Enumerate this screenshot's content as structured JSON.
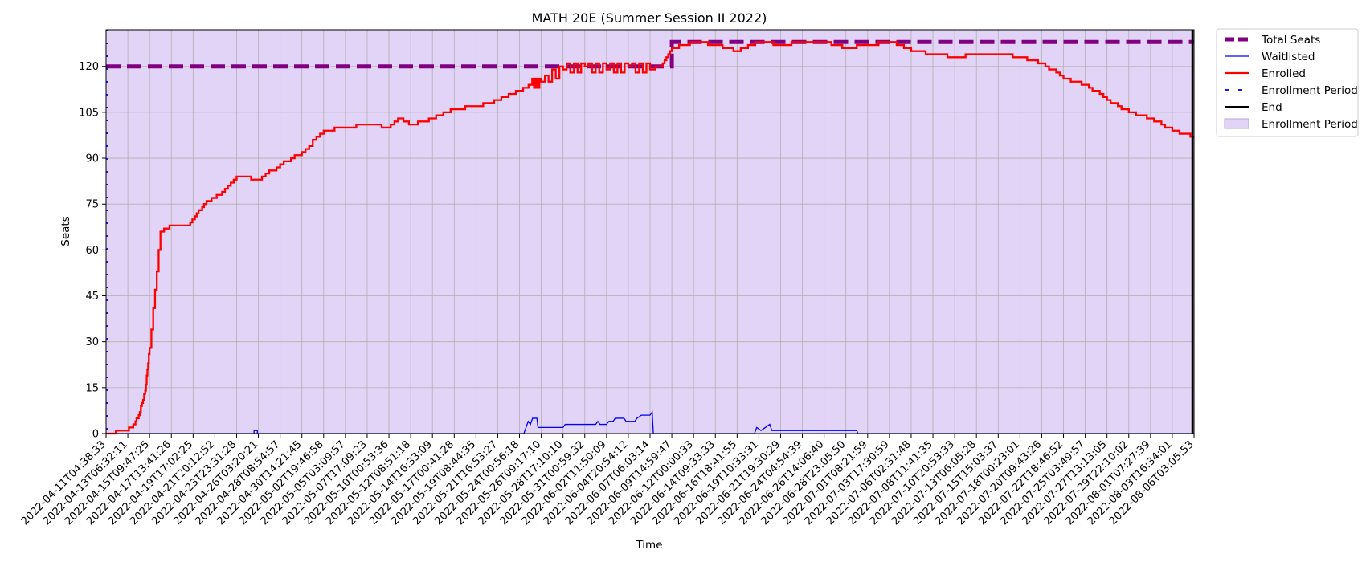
{
  "chart_data": {
    "type": "line",
    "title": "MATH 20E (Summer Session II 2022)",
    "xlabel": "Time",
    "ylabel": "Seats",
    "ylim": [
      0,
      132
    ],
    "yticks": [
      0,
      15,
      30,
      45,
      60,
      75,
      90,
      105,
      120
    ],
    "grid": true,
    "legend_position": "outside-top-right",
    "background_color": "#e2d4f6",
    "x_tick_labels": [
      "2022-04-11T04:38:33",
      "2022-04-13T06:32:11",
      "2022-04-15T09:47:25",
      "2022-04-17T13:41:26",
      "2022-04-19T17:02:25",
      "2022-04-21T20:12:52",
      "2022-04-23T23:31:28",
      "2022-04-26T03:20:21",
      "2022-04-28T08:54:57",
      "2022-04-30T14:21:45",
      "2022-05-02T19:46:58",
      "2022-05-05T03:09:57",
      "2022-05-07T17:09:23",
      "2022-05-10T00:53:36",
      "2022-05-12T08:51:18",
      "2022-05-14T16:33:09",
      "2022-05-17T00:41:28",
      "2022-05-19T08:44:35",
      "2022-05-21T16:53:27",
      "2022-05-24T00:56:18",
      "2022-05-26T09:17:10",
      "2022-05-28T17:10:10",
      "2022-05-31T00:59:32",
      "2022-06-02T11:50:09",
      "2022-06-04T20:54:12",
      "2022-06-07T06:03:14",
      "2022-06-09T14:59:47",
      "2022-06-12T00:00:33",
      "2022-06-14T09:33:33",
      "2022-06-16T18:41:55",
      "2022-06-19T10:33:31",
      "2022-06-21T19:30:29",
      "2022-06-24T04:54:39",
      "2022-06-26T14:06:40",
      "2022-06-28T23:05:50",
      "2022-07-01T08:21:59",
      "2022-07-03T17:30:59",
      "2022-07-06T02:31:48",
      "2022-07-08T11:41:35",
      "2022-07-10T20:53:33",
      "2022-07-13T06:05:28",
      "2022-07-15T15:03:37",
      "2022-07-18T00:23:01",
      "2022-07-20T09:43:26",
      "2022-07-22T18:46:52",
      "2022-07-25T03:49:57",
      "2022-07-27T13:13:05",
      "2022-07-29T22:10:02",
      "2022-08-01T07:27:39",
      "2022-08-03T16:34:01",
      "2022-08-06T03:05:53"
    ],
    "x": [
      0,
      0.9,
      1.2,
      1.5,
      1.8,
      2.0,
      2.5,
      3.0,
      3.8,
      4.0,
      4.5,
      5.2,
      6.0,
      7.0,
      8.0,
      9.0,
      10.0,
      11.0,
      12.0,
      13.0,
      13.5,
      14.0,
      15.0,
      16.0,
      17.0,
      18.0,
      19.0,
      19.5,
      20.0,
      21.0,
      22.0,
      23.0,
      24.0,
      25.0,
      25.5,
      26.0,
      27.0,
      28.0,
      29.0,
      30.0,
      31.0,
      32.0,
      33.0,
      34.0,
      35.0,
      36.0,
      37.0,
      38.0,
      39.0,
      40.0,
      41.0,
      42.0,
      43.0,
      44.0,
      45.0,
      46.0,
      47.0,
      48.0,
      49.0,
      50.0
    ],
    "series": [
      {
        "name": "Total Seats",
        "color": "#800080",
        "style": "dashed-thick",
        "values": [
          120,
          120,
          120,
          120,
          120,
          120,
          120,
          120,
          120,
          120,
          120,
          120,
          120,
          120,
          120,
          120,
          120,
          120,
          120,
          120,
          120,
          120,
          120,
          120,
          120,
          120,
          120,
          120,
          120,
          120,
          120,
          120,
          120,
          120,
          120,
          128,
          128,
          128,
          128,
          128,
          128,
          128,
          128,
          128,
          128,
          128,
          128,
          128,
          128,
          128,
          128,
          128,
          128,
          128,
          128,
          128,
          128,
          128,
          128,
          128
        ]
      },
      {
        "name": "Waitlisted",
        "color": "#0000ff",
        "style": "solid-thin",
        "values": [
          0,
          0,
          0,
          0,
          0,
          0,
          0,
          0,
          0,
          0,
          0,
          0,
          0,
          0,
          0,
          0,
          0,
          0,
          0,
          0,
          0,
          0,
          0,
          0,
          0,
          0,
          0,
          0,
          0,
          0,
          0,
          0,
          0,
          0,
          0,
          0,
          0,
          0,
          0,
          0,
          0,
          0,
          0,
          0,
          0,
          0,
          0,
          0,
          0,
          0,
          0,
          0,
          0,
          0,
          0,
          0,
          0,
          0,
          0,
          0
        ]
      },
      {
        "name": "Enrolled",
        "color": "#ff0000",
        "style": "solid",
        "values": [
          0,
          1,
          2,
          6,
          14,
          28,
          66,
          68,
          68,
          70,
          75,
          78,
          84,
          83,
          88,
          92,
          99,
          100,
          101,
          100,
          103,
          101,
          103,
          106,
          107,
          109,
          112,
          114,
          115,
          119,
          120,
          119,
          120,
          119,
          120,
          126,
          128,
          127,
          125,
          128,
          127,
          128,
          128,
          126,
          127,
          128,
          125,
          124,
          123,
          124,
          124,
          123,
          121,
          116,
          114,
          109,
          105,
          103,
          99,
          97
        ]
      },
      {
        "name": "Enrollment Period",
        "color": "#1a1aff",
        "style": "dotted-vertical"
      },
      {
        "name": "End",
        "color": "#000000",
        "style": "solid-vertical"
      },
      {
        "name": "Enrollment Period",
        "color": "#e2d4f6",
        "style": "shaded-region"
      }
    ],
    "waitlist_steps": [
      [
        0,
        0
      ],
      [
        6.8,
        0
      ],
      [
        6.8,
        1
      ],
      [
        6.95,
        1
      ],
      [
        6.95,
        0
      ],
      [
        19.2,
        0
      ],
      [
        19.3,
        2
      ],
      [
        19.4,
        4
      ],
      [
        19.5,
        3
      ],
      [
        19.6,
        5
      ],
      [
        19.8,
        5
      ],
      [
        19.85,
        2
      ],
      [
        21,
        2
      ],
      [
        21.1,
        3
      ],
      [
        21.2,
        3
      ],
      [
        21.25,
        3
      ],
      [
        22.5,
        3
      ],
      [
        22.6,
        4
      ],
      [
        22.7,
        3
      ],
      [
        23,
        3
      ],
      [
        23.1,
        4
      ],
      [
        23.3,
        4
      ],
      [
        23.4,
        5
      ],
      [
        23.8,
        5
      ],
      [
        23.9,
        4
      ],
      [
        24.3,
        4
      ],
      [
        24.4,
        5
      ],
      [
        24.6,
        6
      ],
      [
        25.0,
        6
      ],
      [
        25.1,
        7
      ],
      [
        25.15,
        0
      ],
      [
        29.8,
        0
      ],
      [
        29.9,
        2
      ],
      [
        30.1,
        1
      ],
      [
        30.5,
        3
      ],
      [
        30.6,
        1
      ],
      [
        34.5,
        1
      ],
      [
        34.55,
        0
      ],
      [
        50,
        0
      ]
    ]
  }
}
